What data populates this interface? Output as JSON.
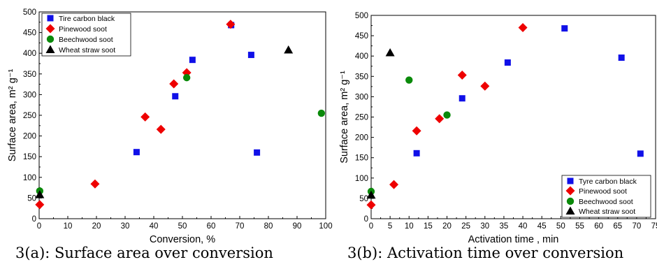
{
  "captions": {
    "a": "3(a): Surface area over conversion",
    "b": "3(b): Activation time over conversion"
  },
  "colors": {
    "tire": "#1010e8",
    "pinewood": "#ee0000",
    "beechwood": "#0a8a0a",
    "wheat": "#000000"
  },
  "chart_data": [
    {
      "type": "scatter",
      "title": "",
      "xlabel": "Conversion, %",
      "ylabel": "Surface area, m² g⁻¹",
      "xlim": [
        0,
        100
      ],
      "ylim": [
        0,
        500
      ],
      "xticks": [
        "0",
        "10",
        "20",
        "30",
        "40",
        "50",
        "60",
        "70",
        "80",
        "90",
        "100"
      ],
      "yticks": [
        "0",
        "50",
        "100",
        "150",
        "200",
        "250",
        "300",
        "350",
        "400",
        "450",
        "500"
      ],
      "legend": "top-left",
      "series": [
        {
          "name": "Tire carbon black",
          "marker": "square",
          "color": "#1010e8",
          "points": [
            [
              34,
              161
            ],
            [
              47.5,
              296
            ],
            [
              53.5,
              384
            ],
            [
              67,
              468
            ],
            [
              74,
              396
            ],
            [
              76,
              160
            ]
          ]
        },
        {
          "name": "Pinewood soot",
          "marker": "diamond",
          "color": "#ee0000",
          "points": [
            [
              0.2,
              34
            ],
            [
              19.5,
              84
            ],
            [
              37,
              246
            ],
            [
              42.5,
              216
            ],
            [
              47,
              326
            ],
            [
              51.5,
              353
            ],
            [
              66.8,
              470
            ]
          ]
        },
        {
          "name": "Beechwood soot",
          "marker": "circle",
          "color": "#0a8a0a",
          "points": [
            [
              0.2,
              67
            ],
            [
              51.5,
              341
            ],
            [
              98.5,
              255
            ]
          ]
        },
        {
          "name": "Wheat straw soot",
          "marker": "triangle",
          "color": "#000000",
          "points": [
            [
              0.2,
              58
            ],
            [
              87,
              408
            ]
          ]
        }
      ]
    },
    {
      "type": "scatter",
      "title": "",
      "xlabel": "Activation time , min",
      "ylabel": "Surface area, m² g⁻¹",
      "xlim": [
        0,
        75
      ],
      "ylim": [
        0,
        500
      ],
      "xticks": [
        "0",
        "5",
        "10",
        "15",
        "20",
        "25",
        "30",
        "35",
        "40",
        "45",
        "50",
        "55",
        "60",
        "65",
        "70",
        "75"
      ],
      "yticks": [
        "0",
        "50",
        "100",
        "150",
        "200",
        "250",
        "300",
        "350",
        "400",
        "450",
        "500"
      ],
      "legend": "bottom-right",
      "series": [
        {
          "name": "Tyre carbon black",
          "marker": "square",
          "color": "#1010e8",
          "points": [
            [
              12,
              161
            ],
            [
              24,
              296
            ],
            [
              36,
              384
            ],
            [
              51,
              468
            ],
            [
              66,
              396
            ],
            [
              71,
              160
            ]
          ]
        },
        {
          "name": "Pinewood soot",
          "marker": "diamond",
          "color": "#ee0000",
          "points": [
            [
              0,
              34
            ],
            [
              6,
              84
            ],
            [
              12,
              216
            ],
            [
              18,
              246
            ],
            [
              24,
              353
            ],
            [
              30,
              326
            ],
            [
              40,
              470
            ]
          ]
        },
        {
          "name": "Beechwood soot",
          "marker": "circle",
          "color": "#0a8a0a",
          "points": [
            [
              0,
              67
            ],
            [
              10,
              341
            ],
            [
              20,
              255
            ]
          ]
        },
        {
          "name": "Wheat straw soot",
          "marker": "triangle",
          "color": "#000000",
          "points": [
            [
              0,
              58
            ],
            [
              5,
              408
            ]
          ]
        }
      ]
    }
  ]
}
